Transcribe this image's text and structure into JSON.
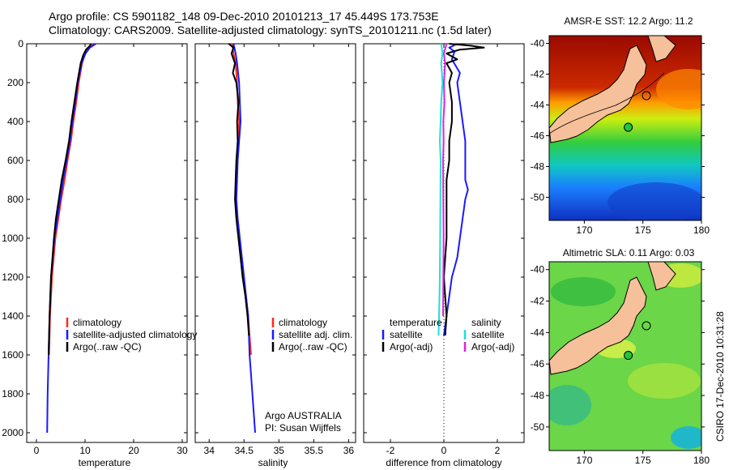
{
  "header": {
    "line1": "Argo profile: CS 5901182_148 09-Dec-2010 20101213_17 45.449S 173.753E",
    "line2": "Climatology: CARS2009. Satellite-adjusted climatology: synTS_20101211.nc (1.5d later)"
  },
  "credits": {
    "program": "Argo AUSTRALIA",
    "pi": "PI: Susan Wijffels",
    "stamp": "CSIRO 17-Dec-2010 10:31:28"
  },
  "colors": {
    "climatology": "#ff2a1a",
    "satellite": "#1a1aff",
    "argo": "#000000",
    "sat_salinity": "#22dddd",
    "argo_salinity": "#e020e0",
    "land": "#f5c09a"
  },
  "chart_data": [
    {
      "type": "line",
      "name": "temperature",
      "xlabel": "temperature",
      "xlim": [
        -2,
        31
      ],
      "ylim": [
        2050,
        0
      ],
      "xticks": [
        "0",
        "10",
        "20",
        "30"
      ],
      "yticks": [
        "0",
        "200",
        "400",
        "600",
        "800",
        "1000",
        "1200",
        "1400",
        "1600",
        "1800",
        "2000"
      ],
      "legend": [
        "climatology",
        "satellite-adjusted climatology",
        "Argo(..raw -QC)"
      ],
      "series": [
        {
          "key": "climatology",
          "depth": [
            0,
            20,
            50,
            100,
            200,
            300,
            400,
            500,
            600,
            700,
            800,
            900,
            1000,
            1200,
            1400,
            1600
          ],
          "values": [
            11.6,
            10.8,
            10.0,
            9.4,
            8.7,
            8.2,
            7.6,
            7.1,
            6.4,
            5.8,
            5.1,
            4.5,
            3.9,
            3.2,
            2.8,
            2.6
          ]
        },
        {
          "key": "satellite",
          "depth": [
            0,
            20,
            50,
            100,
            200,
            300,
            400,
            500,
            600,
            700,
            800,
            900,
            1000,
            1200,
            1400,
            1600,
            1800,
            2000
          ],
          "values": [
            12.2,
            11.0,
            10.1,
            9.3,
            8.5,
            8.0,
            7.4,
            6.9,
            6.2,
            5.5,
            4.9,
            4.3,
            3.7,
            3.0,
            2.7,
            2.5,
            2.3,
            2.2
          ]
        },
        {
          "key": "argo",
          "depth": [
            0,
            10,
            30,
            60,
            100,
            200,
            300,
            400,
            500,
            600,
            700,
            800,
            900,
            1000,
            1200,
            1400,
            1600
          ],
          "values": [
            11.2,
            11.0,
            10.2,
            9.6,
            9.1,
            8.4,
            7.8,
            7.2,
            6.7,
            6.0,
            5.2,
            4.6,
            4.0,
            3.6,
            3.0,
            2.7,
            2.5
          ]
        }
      ]
    },
    {
      "type": "line",
      "name": "salinity",
      "xlabel": "salinity",
      "xlim": [
        33.8,
        36.1
      ],
      "ylim": [
        2050,
        0
      ],
      "xticks": [
        "34",
        "34.5",
        "35",
        "35.5",
        "36"
      ],
      "legend": [
        "climatology",
        "satellite adj. clim.",
        "Argo(..raw -QC)"
      ],
      "series": [
        {
          "key": "climatology",
          "depth": [
            0,
            50,
            100,
            200,
            300,
            400,
            500,
            600,
            700,
            800,
            900,
            1000,
            1100,
            1200,
            1300,
            1400,
            1500,
            1600
          ],
          "values": [
            34.33,
            34.35,
            34.38,
            34.4,
            34.41,
            34.43,
            34.42,
            34.4,
            34.39,
            34.38,
            34.4,
            34.43,
            34.46,
            34.49,
            34.53,
            34.56,
            34.58,
            34.6
          ]
        },
        {
          "key": "satellite",
          "depth": [
            0,
            50,
            100,
            200,
            300,
            400,
            500,
            600,
            700,
            800,
            900,
            1000,
            1100,
            1200,
            1300,
            1400,
            1500,
            1600,
            1700,
            1800,
            1900,
            2000
          ],
          "values": [
            34.35,
            34.38,
            34.4,
            34.43,
            34.44,
            34.45,
            34.43,
            34.41,
            34.4,
            34.39,
            34.41,
            34.44,
            34.47,
            34.5,
            34.53,
            34.56,
            34.57,
            34.58,
            34.6,
            34.62,
            34.64,
            34.66
          ]
        },
        {
          "key": "argo",
          "depth": [
            0,
            20,
            50,
            100,
            150,
            200,
            300,
            400,
            500,
            600,
            700,
            800,
            900,
            1000,
            1100,
            1200,
            1300,
            1400,
            1500
          ],
          "values": [
            34.28,
            34.35,
            34.32,
            34.37,
            34.34,
            34.39,
            34.42,
            34.4,
            34.41,
            34.39,
            34.38,
            34.37,
            34.39,
            34.42,
            34.45,
            34.48,
            34.52,
            34.55,
            34.57
          ]
        }
      ]
    },
    {
      "type": "line",
      "name": "difference",
      "xlabel": "difference from climatology",
      "xlim": [
        -3,
        3
      ],
      "ylim": [
        2050,
        0
      ],
      "xticks": [
        "-2",
        "0",
        "2"
      ],
      "legend_left_title": "temperature",
      "legend_right_title": "salinity",
      "legend": [
        "satellite",
        "Argo(-adj)",
        "satellite",
        "Argo(-adj)"
      ],
      "series": [
        {
          "key": "sat_temp",
          "depth": [
            0,
            20,
            40,
            80,
            150,
            200,
            300,
            400,
            500,
            600,
            700,
            750,
            800,
            900,
            1000,
            1100,
            1200,
            1300,
            1400,
            1500
          ],
          "values": [
            0.5,
            0.2,
            0.4,
            0.3,
            0.6,
            0.5,
            0.6,
            0.7,
            0.8,
            0.8,
            0.8,
            0.9,
            0.8,
            0.7,
            0.6,
            0.5,
            0.3,
            0.2,
            0.1,
            0.0
          ]
        },
        {
          "key": "argo_temp",
          "depth": [
            0,
            10,
            20,
            30,
            50,
            80,
            100,
            150,
            200,
            300,
            400,
            500,
            600,
            700,
            800,
            900,
            1000,
            1200,
            1400,
            1500
          ],
          "values": [
            0.2,
            1.0,
            1.5,
            0.6,
            0.1,
            0.5,
            0.1,
            0.3,
            0.2,
            0.3,
            0.3,
            0.2,
            0.2,
            0.1,
            0.1,
            0.1,
            0.1,
            0.0,
            0.1,
            0.05
          ]
        },
        {
          "key": "sat_sal",
          "depth": [
            0,
            50,
            100,
            200,
            300,
            400,
            500,
            600,
            800,
            1000,
            1200,
            1400,
            1500
          ],
          "values": [
            -0.1,
            -0.05,
            -0.1,
            -0.05,
            -0.1,
            -0.12,
            -0.15,
            -0.12,
            -0.13,
            -0.14,
            -0.15,
            -0.18,
            -0.2
          ]
        },
        {
          "key": "argo_sal",
          "depth": [
            0,
            50,
            100,
            200,
            300,
            400,
            500,
            600,
            800,
            1000,
            1200,
            1400
          ],
          "values": [
            0.1,
            0.0,
            0.05,
            0.0,
            0.02,
            -0.02,
            -0.01,
            -0.03,
            -0.02,
            -0.01,
            -0.02,
            -0.03
          ]
        }
      ]
    },
    {
      "type": "heatmap",
      "name": "sst-map",
      "title": "AMSR-E SST: 12.2 Argo: 11.2",
      "xlim": [
        167,
        180
      ],
      "ylim": [
        -51.5,
        -39.5
      ],
      "xticks": [
        "170",
        "175",
        "180"
      ],
      "yticks": [
        "-40",
        "-42",
        "-44",
        "-46",
        "-48",
        "-50"
      ],
      "marker": {
        "lon": 173.75,
        "lat": -45.45
      }
    },
    {
      "type": "heatmap",
      "name": "sla-map",
      "title": "Altimetric SLA: 0.11 Argo: 0.03",
      "xlim": [
        167,
        180
      ],
      "ylim": [
        -51.5,
        -39.5
      ],
      "xticks": [
        "170",
        "175",
        "180"
      ],
      "yticks": [
        "-40",
        "-42",
        "-44",
        "-46",
        "-48",
        "-50"
      ],
      "marker": {
        "lon": 173.75,
        "lat": -45.45
      }
    }
  ]
}
